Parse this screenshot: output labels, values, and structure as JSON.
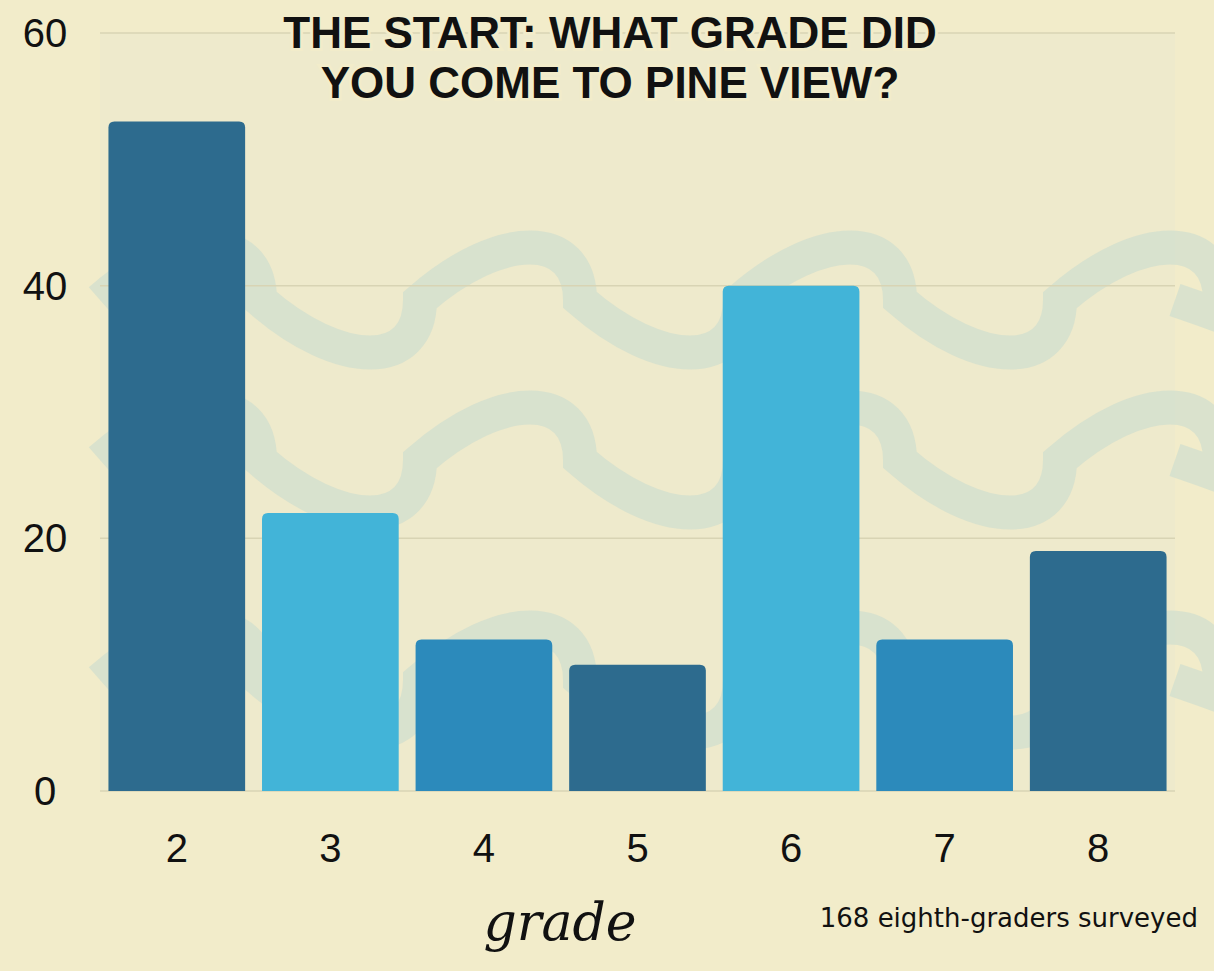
{
  "chart_data": {
    "type": "bar",
    "title": "THE START: WHAT GRADE DID YOU COME TO PINE VIEW?",
    "x_label": "grade",
    "annotation": "168 eighth-graders surveyed",
    "categories": [
      "2",
      "3",
      "4",
      "5",
      "6",
      "7",
      "8"
    ],
    "values": [
      53,
      22,
      12,
      10,
      40,
      12,
      19
    ],
    "colors": [
      "#2d6b8e",
      "#42b4d8",
      "#2c8abb",
      "#2d6b8e",
      "#42b4d8",
      "#2c8abb",
      "#2d6b8e"
    ],
    "ylim": [
      0,
      60
    ],
    "yticks": [
      0,
      20,
      40,
      60
    ],
    "grid": true
  }
}
